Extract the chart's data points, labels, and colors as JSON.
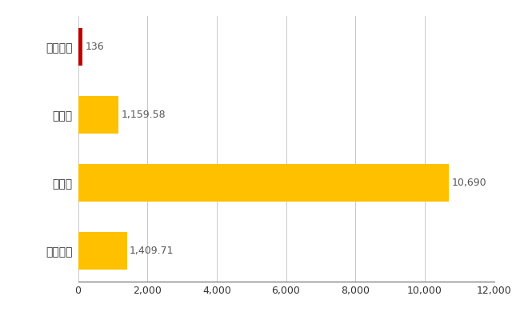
{
  "categories": [
    "全国平均",
    "県最大",
    "県平均",
    "五ケ瀬町"
  ],
  "values": [
    1409.71,
    10690,
    1159.58,
    136
  ],
  "bar_colors": [
    "#FFC000",
    "#FFC000",
    "#FFC000",
    "#C00000"
  ],
  "bar_labels": [
    "1,409.71",
    "10,690",
    "1,159.58",
    "136"
  ],
  "xlim": [
    0,
    12000
  ],
  "xticks": [
    0,
    2000,
    4000,
    6000,
    8000,
    10000,
    12000
  ],
  "grid_color": "#C8C8C8",
  "bg_color": "#FFFFFF",
  "label_fontsize": 10,
  "tick_fontsize": 9,
  "value_label_color": "#555555"
}
